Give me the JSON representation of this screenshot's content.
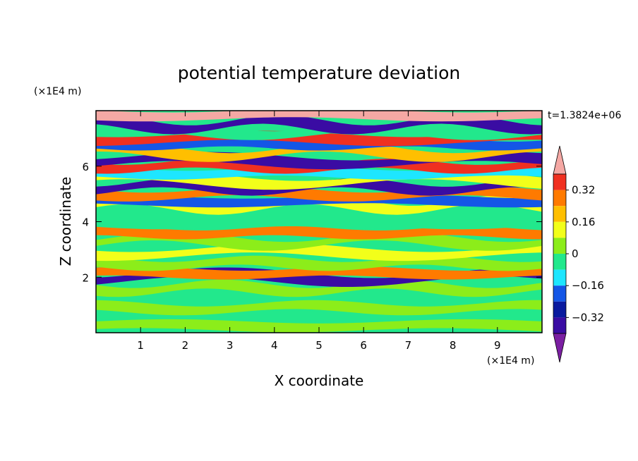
{
  "chart_data": {
    "type": "heatmap",
    "title": "potential temperature deviation",
    "xlabel": "X coordinate",
    "ylabel": "Z coordinate",
    "x_unit": "(×1E4 m)",
    "y_unit": "(×1E4 m)",
    "time_label": "t=1.3824e+06",
    "xlim": [
      0,
      10
    ],
    "ylim": [
      0,
      8
    ],
    "x_ticks": [
      "1",
      "2",
      "3",
      "4",
      "5",
      "6",
      "7",
      "8",
      "9"
    ],
    "y_ticks": [
      "2",
      "4",
      "6"
    ],
    "colorbar": {
      "levels": [
        -0.48,
        -0.4,
        -0.32,
        -0.24,
        -0.16,
        -0.08,
        0,
        0.08,
        0.16,
        0.24,
        0.32,
        0.4,
        0.48
      ],
      "tick_labels": [
        "0.32",
        "0.16",
        "0",
        "−0.16",
        "−0.32"
      ],
      "colors": [
        "#7b1fa2",
        "#3a0ca3",
        "#0a1a9e",
        "#1456e6",
        "#1ee6ff",
        "#22e88c",
        "#8ced1a",
        "#f2ff1a",
        "#ffbf00",
        "#ff7a00",
        "#f03020",
        "#f5a8a4"
      ],
      "extend": "both"
    },
    "bands": [
      {
        "z": 0.25,
        "value": 0.01
      },
      {
        "z": 0.9,
        "value": 0.03
      },
      {
        "z": 1.6,
        "value": 0.01
      },
      {
        "z": 2.0,
        "value": -0.35
      },
      {
        "z": 2.15,
        "value": 0.3
      },
      {
        "z": 2.5,
        "value": 0.05
      },
      {
        "z": 2.9,
        "value": 0.12
      },
      {
        "z": 3.3,
        "value": 0.04
      },
      {
        "z": 3.6,
        "value": 0.25
      },
      {
        "z": 4.0,
        "value": -0.02
      },
      {
        "z": 4.4,
        "value": -0.08
      },
      {
        "z": 4.6,
        "value": 0.1
      },
      {
        "z": 4.75,
        "value": -0.2
      },
      {
        "z": 5.0,
        "value": 0.3
      },
      {
        "z": 5.25,
        "value": -0.38
      },
      {
        "z": 5.5,
        "value": 0.15
      },
      {
        "z": 5.75,
        "value": -0.15
      },
      {
        "z": 6.0,
        "value": 0.35
      },
      {
        "z": 6.2,
        "value": -0.38
      },
      {
        "z": 6.5,
        "value": 0.2
      },
      {
        "z": 6.8,
        "value": -0.22
      },
      {
        "z": 7.0,
        "value": 0.38
      },
      {
        "z": 7.25,
        "value": -0.05
      },
      {
        "z": 7.5,
        "value": -0.4
      },
      {
        "z": 7.85,
        "value": 0.45
      }
    ]
  }
}
